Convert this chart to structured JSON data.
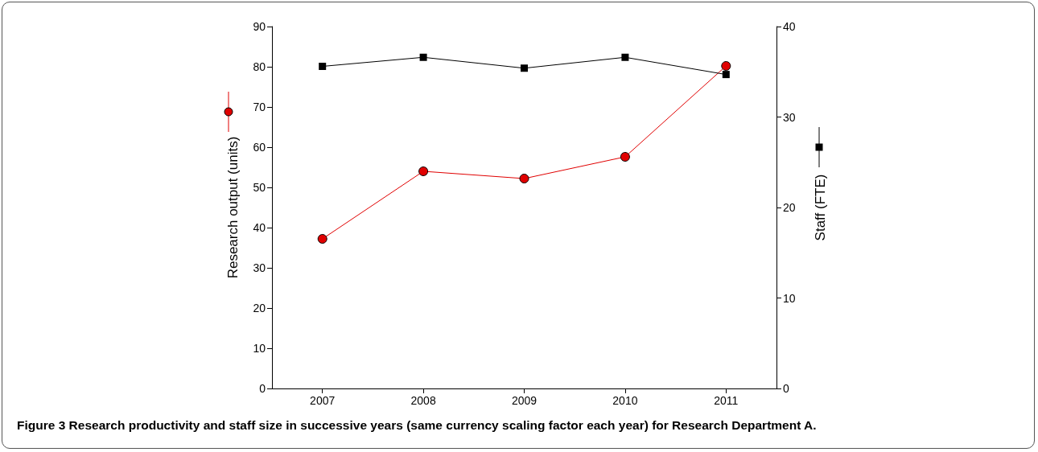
{
  "chart_data": {
    "type": "line",
    "title": "Figure 3 Research productivity and staff size in successive years (same currency scaling factor each year) for Research Department A.",
    "categories": [
      "2007",
      "2008",
      "2009",
      "2010",
      "2011"
    ],
    "ylabel": "Research output (units)",
    "y2label": "Staff (FTE)",
    "ylim": [
      0,
      90
    ],
    "yticks": [
      0,
      10,
      20,
      30,
      40,
      50,
      60,
      70,
      80,
      90
    ],
    "y2lim": [
      0,
      40
    ],
    "y2ticks": [
      0,
      10,
      20,
      30,
      40
    ],
    "grid": false,
    "legend": false,
    "series": [
      {
        "color": "#e00000",
        "marker": "circle",
        "values": [
          37.2,
          54,
          52.2,
          57.6,
          80.2
        ]
      },
      {
        "color": "#000000",
        "marker": "square",
        "axis": "y2",
        "values": [
          35.6,
          36.6,
          35.4,
          36.6,
          34.7
        ]
      }
    ]
  }
}
